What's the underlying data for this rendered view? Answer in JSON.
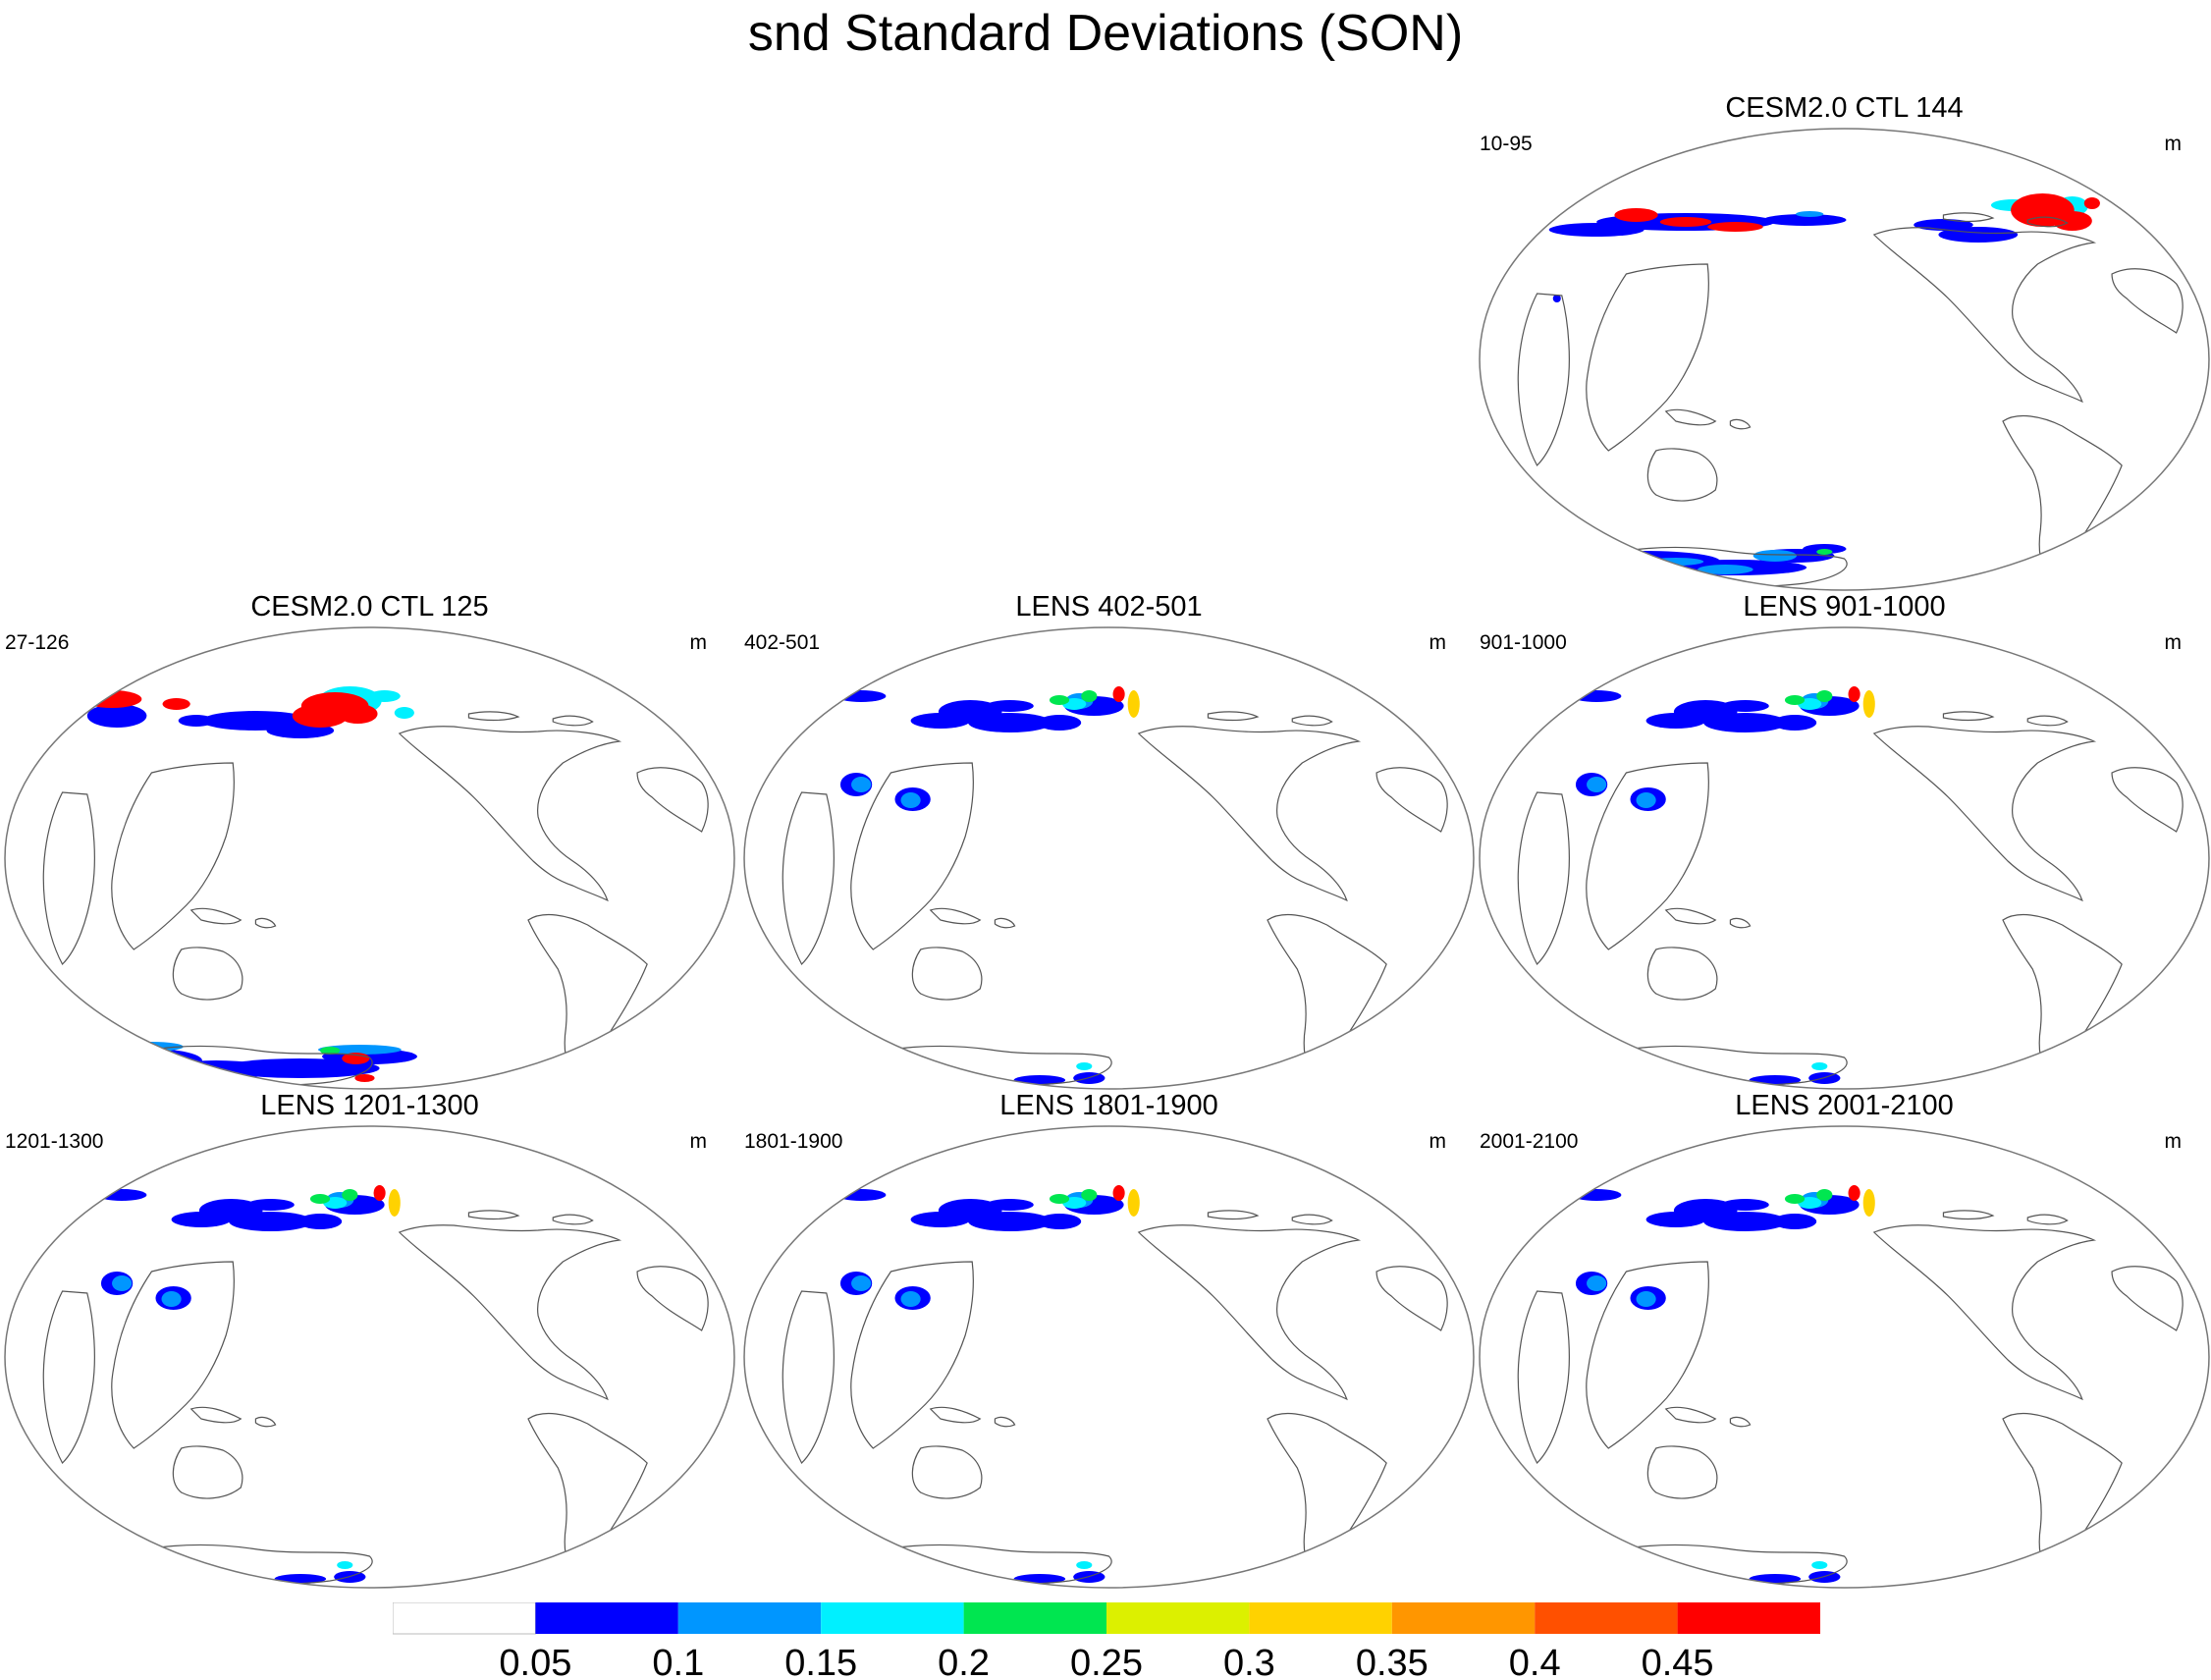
{
  "title": "snd Standard Deviations (SON)",
  "panels": [
    {
      "title": "CESM2.0 CTL 144",
      "years": "10-95",
      "units": "m",
      "slot": 2,
      "variant": "ctl-strong"
    },
    {
      "title": "CESM2.0 CTL 125",
      "years": "27-126",
      "units": "m",
      "slot": 3,
      "variant": "ctl"
    },
    {
      "title": "LENS 402-501",
      "years": "402-501",
      "units": "m",
      "slot": 4,
      "variant": "lens"
    },
    {
      "title": "LENS 901-1000",
      "years": "901-1000",
      "units": "m",
      "slot": 5,
      "variant": "lens"
    },
    {
      "title": "LENS 1201-1300",
      "years": "1201-1300",
      "units": "m",
      "slot": 6,
      "variant": "lens"
    },
    {
      "title": "LENS 1801-1900",
      "years": "1801-1900",
      "units": "m",
      "slot": 7,
      "variant": "lens"
    },
    {
      "title": "LENS 2001-2100",
      "years": "2001-2100",
      "units": "m",
      "slot": 8,
      "variant": "lens"
    }
  ],
  "colorbar": {
    "labels": [
      "0.05",
      "0.1",
      "0.15",
      "0.2",
      "0.25",
      "0.3",
      "0.35",
      "0.4",
      "0.45"
    ],
    "colors": [
      "#ffffff",
      "#0000ff",
      "#0096ff",
      "#00f0ff",
      "#00e650",
      "#dcf000",
      "#ffd200",
      "#ff9600",
      "#ff5000",
      "#ff0000"
    ]
  },
  "colors": {
    "coastline": "#555555",
    "border": "#777777"
  }
}
